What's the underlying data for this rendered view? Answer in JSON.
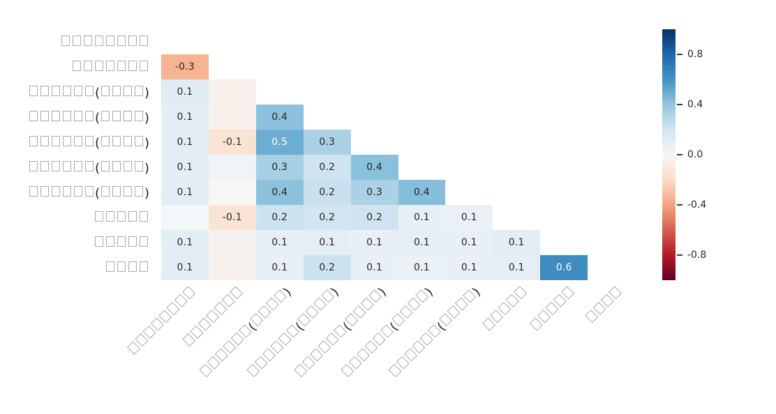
{
  "figure": {
    "background": "#ffffff"
  },
  "heatmap": {
    "row_labels": [
      "□□□□□□□□",
      "□□□□□□□",
      "□□□□□□(□□□□)",
      "□□□□□□(□□□□)",
      "□□□□□□(□□□□)",
      "□□□□□□(□□□□)",
      "□□□□□□(□□□□)",
      "□□□□□",
      "□□□□□",
      "□□□□"
    ],
    "col_labels": [
      "□□□□□□□□",
      "□□□□□□□",
      "□□□□□□(□□□□)",
      "□□□□□□(□□□□)",
      "□□□□□□(□□□□)",
      "□□□□□□(□□□□)",
      "□□□□□□(□□□□)",
      "□□□□□",
      "□□□□□",
      "□□□□"
    ],
    "annotation_text_dark": "#262626",
    "annotation_text_light": "#ffffff",
    "cells": [
      [
        null,
        null,
        null,
        null,
        null,
        null,
        null,
        null,
        null,
        null
      ],
      [
        [
          "-0.3",
          "#f6b491"
        ],
        null,
        null,
        null,
        null,
        null,
        null,
        null,
        null,
        null
      ],
      [
        [
          "0.1",
          "#e0ecf3"
        ],
        [
          "",
          "#f7f0eb"
        ],
        null,
        null,
        null,
        null,
        null,
        null,
        null,
        null
      ],
      [
        [
          "0.1",
          "#e3edf4"
        ],
        [
          "",
          "#f7f0eb"
        ],
        [
          "0.4",
          "#8cc2dc"
        ],
        null,
        null,
        null,
        null,
        null,
        null,
        null
      ],
      [
        [
          "0.1",
          "#e3edf4"
        ],
        [
          "-0.1",
          "#f9e3d5"
        ],
        [
          "0.5",
          "#6caed3",
          "w"
        ],
        [
          "0.3",
          "#aad1e6"
        ],
        null,
        null,
        null,
        null,
        null,
        null
      ],
      [
        [
          "0.1",
          "#e3edf4"
        ],
        [
          "",
          "#eff4f6"
        ],
        [
          "0.3",
          "#a6cfe4"
        ],
        [
          "0.2",
          "#cfe3f0"
        ],
        [
          "0.4",
          "#89c0db"
        ],
        null,
        null,
        null,
        null,
        null
      ],
      [
        [
          "0.1",
          "#e3edf4"
        ],
        [
          "",
          "#f6f6f5"
        ],
        [
          "0.4",
          "#8cc2dc"
        ],
        [
          "0.2",
          "#c9e1ee"
        ],
        [
          "0.3",
          "#aad1e6"
        ],
        [
          "0.4",
          "#85bedb"
        ],
        null,
        null,
        null,
        null
      ],
      [
        [
          "",
          "#f4f7f9"
        ],
        [
          "-0.1",
          "#f9e3d5"
        ],
        [
          "0.2",
          "#cbe2ef"
        ],
        [
          "0.2",
          "#d2e5f0"
        ],
        [
          "0.2",
          "#d0e4f0"
        ],
        [
          "0.1",
          "#e7f0f5"
        ],
        [
          "0.1",
          "#e9f1f6"
        ],
        null,
        null,
        null
      ],
      [
        [
          "0.1",
          "#e3edf4"
        ],
        [
          "",
          "#f5f1ef"
        ],
        [
          "0.1",
          "#e6eff5"
        ],
        [
          "0.1",
          "#e4eef4"
        ],
        [
          "0.1",
          "#e8f0f6"
        ],
        [
          "0.1",
          "#e6eff5"
        ],
        [
          "0.1",
          "#e8f0f6"
        ],
        [
          "0.1",
          "#e3edf4"
        ],
        null,
        null
      ],
      [
        [
          "0.1",
          "#e3edf4"
        ],
        [
          "",
          "#f7f1ed"
        ],
        [
          "0.1",
          "#e8f0f6"
        ],
        [
          "0.2",
          "#cde2ef"
        ],
        [
          "0.1",
          "#e8f0f6"
        ],
        [
          "0.1",
          "#eaf2f6"
        ],
        [
          "0.1",
          "#e8f0f6"
        ],
        [
          "0.1",
          "#e5eef5"
        ],
        [
          "0.6",
          "#3f8cc2",
          "w"
        ],
        null
      ]
    ]
  },
  "colorbar": {
    "colormap": "RdBu",
    "range": [
      -1,
      1
    ],
    "ticks": [
      {
        "label": "0.8",
        "value": 0.8
      },
      {
        "label": "0.4",
        "value": 0.4
      },
      {
        "label": "0.0",
        "value": 0.0
      },
      {
        "label": "-0.4",
        "value": -0.4
      },
      {
        "label": "-0.8",
        "value": -0.8
      }
    ],
    "stops": [
      "#053061",
      "#2166ac",
      "#4393c3",
      "#92c5de",
      "#d1e5f0",
      "#f7f7f7",
      "#fddbc7",
      "#f4a582",
      "#d6604d",
      "#b2182b",
      "#67001f"
    ]
  },
  "chart_data": {
    "type": "heatmap",
    "subtype": "correlation-matrix-lower-triangle",
    "title": "",
    "rows": [
      "□□□□□□□□",
      "□□□□□□□",
      "□□□□□□(□□□□)",
      "□□□□□□(□□□□)",
      "□□□□□□(□□□□)",
      "□□□□□□(□□□□)",
      "□□□□□□(□□□□)",
      "□□□□□",
      "□□□□□",
      "□□□□"
    ],
    "cols": [
      "□□□□□□□□",
      "□□□□□□□",
      "□□□□□□(□□□□)",
      "□□□□□□(□□□□)",
      "□□□□□□(□□□□)",
      "□□□□□□(□□□□)",
      "□□□□□□(□□□□)",
      "□□□□□",
      "□□□□□",
      "□□□□"
    ],
    "values": [
      [
        null,
        null,
        null,
        null,
        null,
        null,
        null,
        null,
        null,
        null
      ],
      [
        -0.3,
        null,
        null,
        null,
        null,
        null,
        null,
        null,
        null,
        null
      ],
      [
        0.1,
        0.0,
        null,
        null,
        null,
        null,
        null,
        null,
        null,
        null
      ],
      [
        0.1,
        0.0,
        0.4,
        null,
        null,
        null,
        null,
        null,
        null,
        null
      ],
      [
        0.1,
        -0.1,
        0.5,
        0.3,
        null,
        null,
        null,
        null,
        null,
        null
      ],
      [
        0.1,
        0.0,
        0.3,
        0.2,
        0.4,
        null,
        null,
        null,
        null,
        null
      ],
      [
        0.1,
        0.0,
        0.4,
        0.2,
        0.3,
        0.4,
        null,
        null,
        null,
        null
      ],
      [
        0.0,
        -0.1,
        0.2,
        0.2,
        0.2,
        0.1,
        0.1,
        null,
        null,
        null
      ],
      [
        0.1,
        0.0,
        0.1,
        0.1,
        0.1,
        0.1,
        0.1,
        0.1,
        null,
        null
      ],
      [
        0.1,
        0.0,
        0.1,
        0.2,
        0.1,
        0.1,
        0.1,
        0.1,
        0.6,
        null
      ]
    ],
    "annotated_values_hidden_when_zero": true,
    "mask": "upper-triangle-including-diagonal",
    "colormap": "RdBu",
    "vmin": -1,
    "vmax": 1,
    "colorbar_ticks": [
      0.8,
      0.4,
      0.0,
      -0.4,
      -0.8
    ],
    "legend_position": "right",
    "grid": false
  }
}
